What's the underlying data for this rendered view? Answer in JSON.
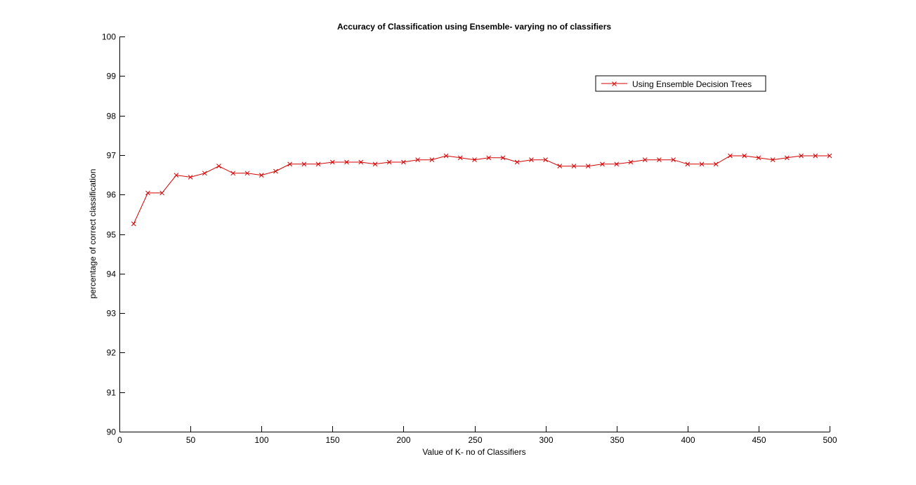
{
  "chart_data": {
    "type": "line",
    "title": "Accuracy of Classification using Ensemble- varying no of classifiers",
    "xlabel": "Value of K- no of Classifiers",
    "ylabel": "percentage of correct classification",
    "xlim": [
      0,
      500
    ],
    "ylim": [
      90,
      100
    ],
    "xticks": [
      0,
      50,
      100,
      150,
      200,
      250,
      300,
      350,
      400,
      450,
      500
    ],
    "yticks": [
      90,
      91,
      92,
      93,
      94,
      95,
      96,
      97,
      98,
      99,
      100
    ],
    "grid": false,
    "legend": {
      "placement": "top-right",
      "entries": [
        "Using Ensemble Decision Trees"
      ]
    },
    "series": [
      {
        "name": "Using Ensemble Decision Trees",
        "color": "#d40000",
        "marker": "x",
        "x": [
          10,
          20,
          30,
          40,
          50,
          60,
          70,
          80,
          90,
          100,
          110,
          120,
          130,
          140,
          150,
          160,
          170,
          180,
          190,
          200,
          210,
          220,
          230,
          240,
          250,
          260,
          270,
          280,
          290,
          300,
          310,
          320,
          330,
          340,
          350,
          360,
          370,
          380,
          390,
          400,
          410,
          420,
          430,
          440,
          450,
          460,
          470,
          480,
          490,
          500
        ],
        "y": [
          95.26,
          96.04,
          96.04,
          96.49,
          96.44,
          96.54,
          96.72,
          96.54,
          96.54,
          96.49,
          96.59,
          96.77,
          96.77,
          96.77,
          96.82,
          96.82,
          96.82,
          96.77,
          96.82,
          96.82,
          96.88,
          96.88,
          96.98,
          96.93,
          96.88,
          96.93,
          96.93,
          96.82,
          96.88,
          96.88,
          96.72,
          96.72,
          96.72,
          96.77,
          96.77,
          96.82,
          96.88,
          96.88,
          96.88,
          96.77,
          96.77,
          96.77,
          96.98,
          96.98,
          96.93,
          96.88,
          96.93,
          96.98,
          96.98,
          96.98
        ]
      }
    ]
  }
}
